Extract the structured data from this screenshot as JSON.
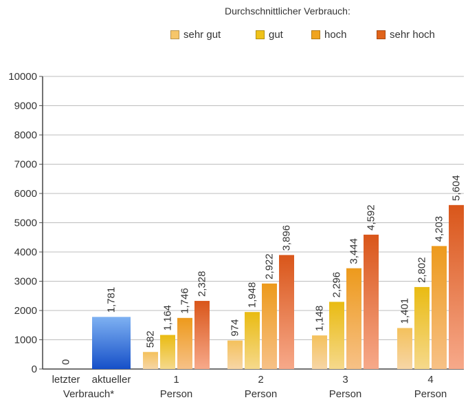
{
  "legend": {
    "title": "Durchschnittlicher Verbrauch:",
    "items": [
      {
        "label": "sehr gut",
        "color": "#f6c66a"
      },
      {
        "label": "gut",
        "color": "#efc21a"
      },
      {
        "label": "hoch",
        "color": "#f0a420"
      },
      {
        "label": "sehr hoch",
        "color": "#e0631a"
      }
    ]
  },
  "chart_data": {
    "type": "bar",
    "ylim": [
      0,
      10000
    ],
    "yticks": [
      0,
      1000,
      2000,
      3000,
      4000,
      5000,
      6000,
      7000,
      8000,
      9000,
      10000
    ],
    "grid": true,
    "legend_position": "top-right",
    "own_bars": [
      {
        "label_line1": "letzter",
        "label_line2": "Verbrauch*",
        "value": 0,
        "value_label": "0"
      },
      {
        "label_line1": "aktueller",
        "label_line2": "",
        "value": 1781,
        "value_label": "1,781",
        "color": "#2f6fd8"
      }
    ],
    "categories": [
      {
        "label_line1": "1",
        "label_line2": "Person"
      },
      {
        "label_line1": "2",
        "label_line2": "Person"
      },
      {
        "label_line1": "3",
        "label_line2": "Person"
      },
      {
        "label_line1": "4",
        "label_line2": "Person"
      }
    ],
    "series": [
      {
        "name": "sehr gut",
        "values": [
          582,
          974,
          1148,
          1401
        ],
        "value_labels": [
          "582",
          "974",
          "1,148",
          "1,401"
        ]
      },
      {
        "name": "gut",
        "values": [
          1164,
          1948,
          2296,
          2802
        ],
        "value_labels": [
          "1,164",
          "1,948",
          "2,296",
          "2,802"
        ]
      },
      {
        "name": "hoch",
        "values": [
          1746,
          2922,
          3444,
          4203
        ],
        "value_labels": [
          "1,746",
          "2,922",
          "3,444",
          "4,203"
        ]
      },
      {
        "name": "sehr hoch",
        "values": [
          2328,
          3896,
          4592,
          5604
        ],
        "value_labels": [
          "2,328",
          "3,896",
          "4,592",
          "5,604"
        ]
      }
    ]
  }
}
